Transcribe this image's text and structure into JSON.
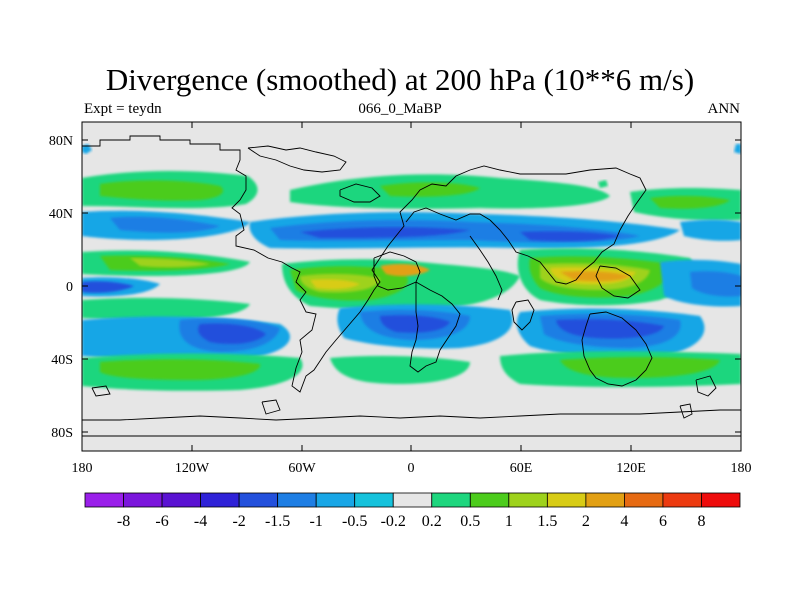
{
  "title": "Divergence (smoothed) at 200 hPa (10**6 m/s)",
  "subtitle_left": "Expt = teydn",
  "subtitle_center": "066_0_MaBP",
  "subtitle_right": "ANN",
  "x_ticks": [
    "180",
    "120W",
    "60W",
    "0",
    "60E",
    "120E",
    "180"
  ],
  "y_ticks": [
    "80N",
    "40N",
    "0",
    "40S",
    "80S"
  ],
  "colorbar": {
    "labels": [
      "-8",
      "-6",
      "-4",
      "-2",
      "-1.5",
      "-1",
      "-0.5",
      "-0.2",
      "0.2",
      "0.5",
      "1",
      "1.5",
      "2",
      "4",
      "6",
      "8"
    ],
    "colors": [
      "#9a1fea",
      "#7b16dc",
      "#5a12d2",
      "#2f22d8",
      "#2350dc",
      "#1e7ee4",
      "#18a6e6",
      "#16c2dc",
      "#e6e6e6",
      "#1ed67e",
      "#4ccc1c",
      "#9ed21c",
      "#d8cc16",
      "#e2a014",
      "#e66a12",
      "#ec3a10",
      "#ee0c0c"
    ]
  },
  "palette": {
    "background": "#e6e6e6",
    "c_m1": "#18a6e6",
    "c_m2": "#1e7ee4",
    "c_m3": "#2350dc",
    "c_m4": "#2f22d8",
    "c_p1": "#1ed67e",
    "c_p2": "#4ccc1c",
    "c_p3": "#9ed21c",
    "c_p4": "#d8cc16",
    "c_p5": "#e2a014",
    "c_p6": "#e66a12",
    "c_tiny": "#16c2dc"
  }
}
